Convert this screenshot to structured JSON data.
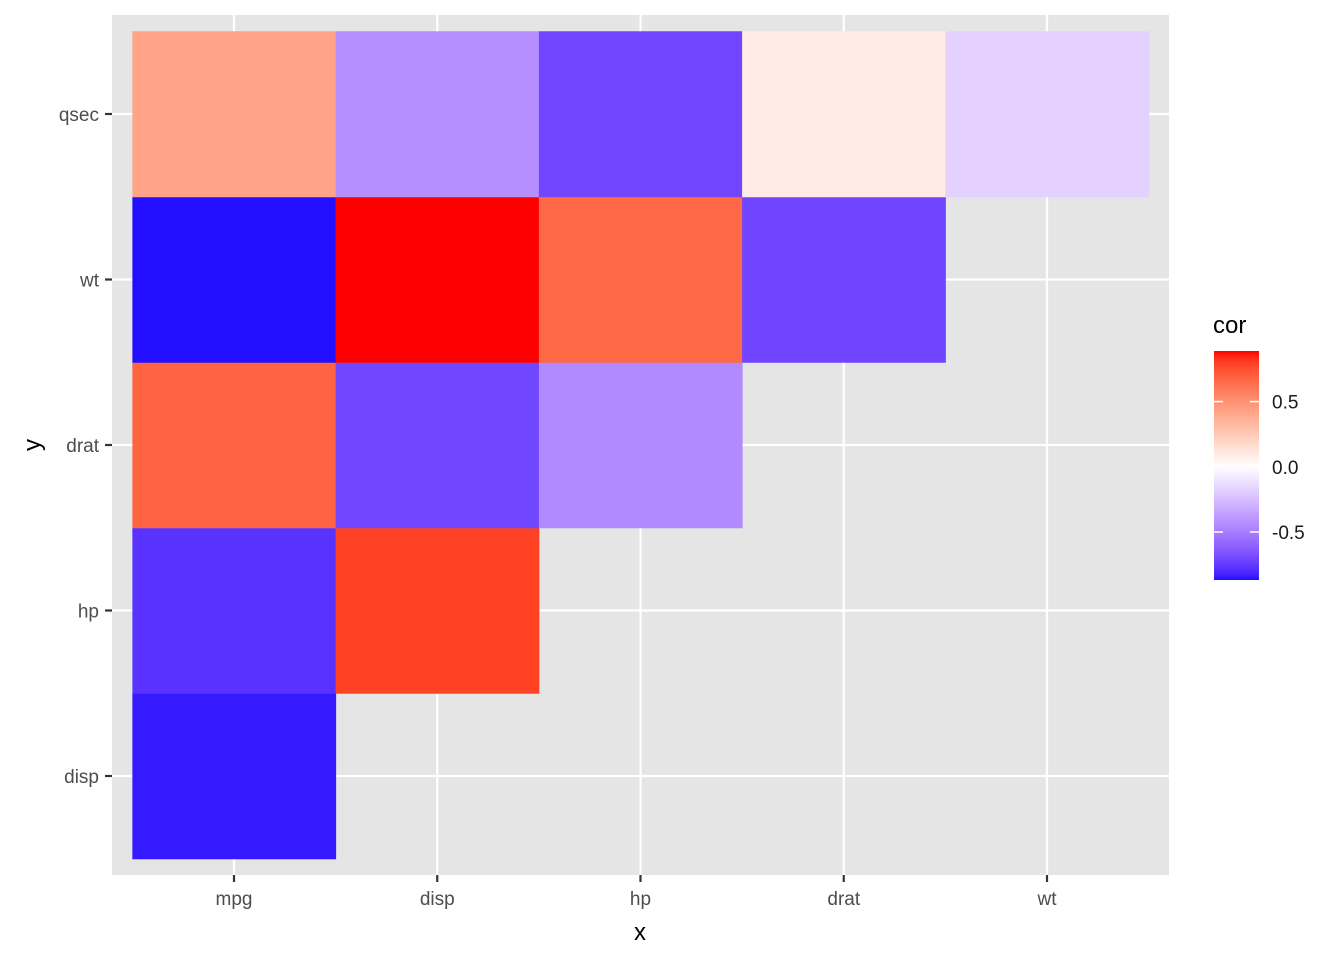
{
  "chart_data": {
    "type": "heatmap",
    "title": "",
    "xlabel": "x",
    "ylabel": "y",
    "x_categories": [
      "mpg",
      "disp",
      "hp",
      "drat",
      "wt"
    ],
    "y_categories": [
      "disp",
      "hp",
      "drat",
      "wt",
      "qsec"
    ],
    "cells": [
      {
        "x": "mpg",
        "y": "disp",
        "cor": -0.848
      },
      {
        "x": "mpg",
        "y": "hp",
        "cor": -0.776
      },
      {
        "x": "mpg",
        "y": "drat",
        "cor": 0.681
      },
      {
        "x": "mpg",
        "y": "wt",
        "cor": -0.868
      },
      {
        "x": "mpg",
        "y": "qsec",
        "cor": 0.419
      },
      {
        "x": "disp",
        "y": "hp",
        "cor": 0.791
      },
      {
        "x": "disp",
        "y": "drat",
        "cor": -0.71
      },
      {
        "x": "disp",
        "y": "wt",
        "cor": 0.888
      },
      {
        "x": "disp",
        "y": "qsec",
        "cor": -0.434
      },
      {
        "x": "hp",
        "y": "drat",
        "cor": -0.449
      },
      {
        "x": "hp",
        "y": "wt",
        "cor": 0.659
      },
      {
        "x": "hp",
        "y": "qsec",
        "cor": -0.708
      },
      {
        "x": "drat",
        "y": "wt",
        "cor": -0.712
      },
      {
        "x": "drat",
        "y": "qsec",
        "cor": 0.091
      },
      {
        "x": "wt",
        "y": "qsec",
        "cor": -0.175
      }
    ],
    "legend": {
      "title": "cor",
      "placement": "right",
      "range": [
        -0.868,
        0.888
      ],
      "ticks": [
        0.5,
        0.0,
        -0.5
      ],
      "tick_labels": [
        "0.5",
        "0.0",
        "-0.5"
      ],
      "low_color": "#0000FF",
      "mid_color": "#FFFFFF",
      "high_color": "#FF0000",
      "midpoint": 0
    },
    "panel_background": "#E5E5E5",
    "grid": true
  }
}
